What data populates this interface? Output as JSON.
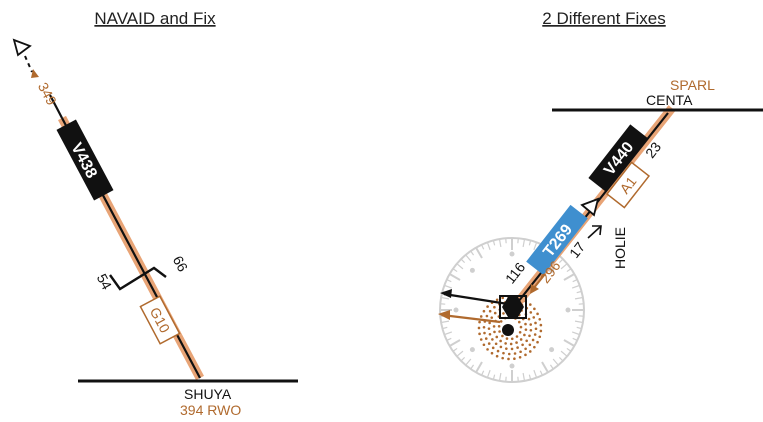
{
  "panels": {
    "left": {
      "title": "NAVAID and Fix",
      "airway": "V438",
      "course": "349",
      "fix_name": "SHUYA",
      "fix_radial": "394 RWO",
      "mileage_a": "54",
      "mileage_b": "66",
      "gnss_box": "G10"
    },
    "right": {
      "title": "2 Different Fixes",
      "fix_top_brown": "SPARL",
      "fix_top_black": "CENTA",
      "airway_black": "V440",
      "airway_blue": "T269",
      "mileage_23": "23",
      "mileage_17": "17",
      "course_116": "116",
      "course_296": "296",
      "gnss_box": "A1",
      "fix_side": "HOLIE"
    }
  },
  "colors": {
    "brown": "#b06a2e",
    "route_brown": "#e8a476",
    "black": "#111111",
    "blue": "#3f8fcf",
    "rose": "#c8c8c8"
  }
}
